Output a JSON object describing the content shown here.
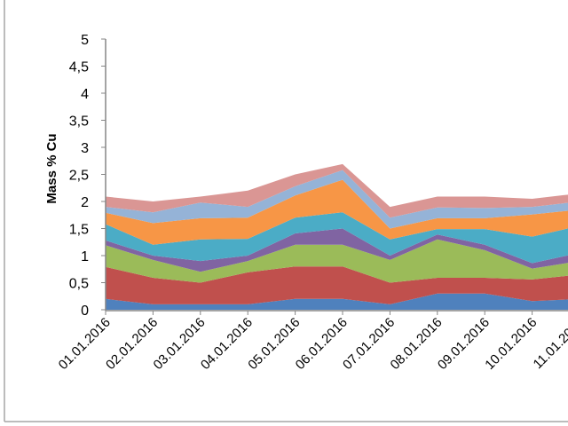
{
  "chart_data": {
    "type": "area",
    "stacked": true,
    "title": "",
    "xlabel": "",
    "ylabel": "Mass % Cu",
    "ylim": [
      0,
      5
    ],
    "yticks": [
      "0",
      "0,5",
      "1",
      "1,5",
      "2",
      "2,5",
      "3",
      "3,5",
      "4",
      "4,5",
      "5"
    ],
    "categories": [
      "01.01.2016",
      "02.01.2016",
      "03.01.2016",
      "04.01.2016",
      "05.01.2016",
      "06.01.2016",
      "07.01.2016",
      "08.01.2016",
      "09.01.2016",
      "10.01.2016",
      "11.01.2016"
    ],
    "grid": false,
    "series": [
      {
        "color": "#4F81BD",
        "values": [
          0.2,
          0.1,
          0.1,
          0.1,
          0.2,
          0.2,
          0.1,
          0.3,
          0.3,
          0.16,
          0.2
        ]
      },
      {
        "color": "#C0504D",
        "values": [
          0.59,
          0.49,
          0.4,
          0.59,
          0.6,
          0.6,
          0.4,
          0.29,
          0.29,
          0.4,
          0.45
        ]
      },
      {
        "color": "#9BBB59",
        "values": [
          0.4,
          0.33,
          0.2,
          0.21,
          0.4,
          0.4,
          0.42,
          0.71,
          0.51,
          0.2,
          0.25
        ]
      },
      {
        "color": "#8064A2",
        "values": [
          0.09,
          0.08,
          0.2,
          0.1,
          0.21,
          0.3,
          0.08,
          0.09,
          0.1,
          0.1,
          0.15
        ]
      },
      {
        "color": "#4BACC6",
        "values": [
          0.3,
          0.2,
          0.4,
          0.31,
          0.29,
          0.3,
          0.3,
          0.1,
          0.29,
          0.49,
          0.5
        ]
      },
      {
        "color": "#F79646",
        "values": [
          0.21,
          0.4,
          0.39,
          0.39,
          0.41,
          0.6,
          0.2,
          0.2,
          0.2,
          0.41,
          0.3
        ]
      },
      {
        "color": "#95B3D7",
        "values": [
          0.11,
          0.2,
          0.29,
          0.2,
          0.17,
          0.18,
          0.2,
          0.2,
          0.19,
          0.14,
          0.15
        ]
      },
      {
        "color": "#DA9694",
        "values": [
          0.19,
          0.2,
          0.11,
          0.3,
          0.22,
          0.11,
          0.2,
          0.2,
          0.21,
          0.15,
          0.15
        ]
      }
    ]
  }
}
